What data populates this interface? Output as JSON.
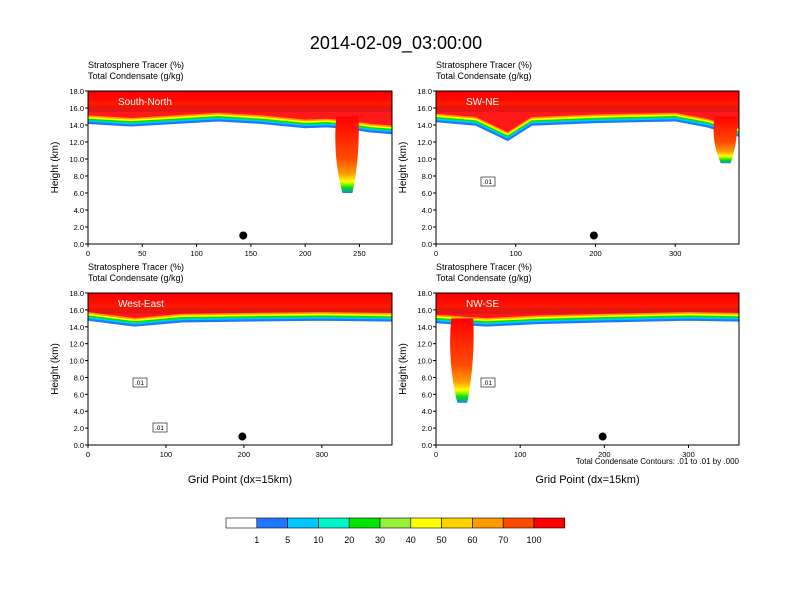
{
  "title": "2014-02-09_03:00:00",
  "footnote": "Total Condensate Contours: .01 to .01 by .000",
  "colorbar": {
    "colors": [
      "#ffffff",
      "#1e78ff",
      "#00c8ff",
      "#00f5c8",
      "#00e600",
      "#96f03c",
      "#ffff00",
      "#ffd200",
      "#ff9b00",
      "#ff4b00",
      "#ff0000"
    ],
    "labels": [
      "1",
      "5",
      "10",
      "20",
      "30",
      "40",
      "50",
      "60",
      "70",
      "100"
    ]
  },
  "chart_data": [
    {
      "type": "heatmap",
      "id": "south-north",
      "section_label": "South-North",
      "title_line1": "Stratosphere Tracer   (%)",
      "title_line2": "Total Condensate   (g/kg)",
      "ylabel": "Height (km)",
      "xlabel": "",
      "xlim": [
        0,
        280
      ],
      "ylim": [
        0,
        18
      ],
      "xticks": [
        "0",
        "50",
        "100",
        "150",
        "200",
        "250"
      ],
      "xtick_values": [
        0,
        50,
        100,
        150,
        200,
        250
      ],
      "yticks": [
        "0.0",
        "2.0",
        "4.0",
        "6.0",
        "8.0",
        "10.0",
        "12.0",
        "14.0",
        "16.0",
        "18.0"
      ],
      "tropopause_km": [
        [
          0,
          15.0
        ],
        [
          40,
          14.7
        ],
        [
          80,
          15.0
        ],
        [
          120,
          15.3
        ],
        [
          160,
          15.0
        ],
        [
          200,
          14.5
        ],
        [
          220,
          14.6
        ],
        [
          240,
          14.4
        ],
        [
          260,
          14.0
        ],
        [
          280,
          13.8
        ]
      ],
      "intrusion": {
        "x": 238,
        "bottom_km": 6.0
      },
      "marker": {
        "x": 143,
        "y": 1.0
      },
      "contour_labels": []
    },
    {
      "type": "heatmap",
      "id": "sw-ne",
      "section_label": "SW-NE",
      "title_line1": "Stratosphere Tracer   (%)",
      "title_line2": "Total Condensate   (g/kg)",
      "ylabel": "Height (km)",
      "xlabel": "",
      "xlim": [
        0,
        380
      ],
      "ylim": [
        0,
        18
      ],
      "xticks": [
        "0",
        "100",
        "200",
        "300"
      ],
      "xtick_values": [
        0,
        100,
        200,
        300
      ],
      "yticks": [
        "0.0",
        "2.0",
        "4.0",
        "6.0",
        "8.0",
        "10.0",
        "12.0",
        "14.0",
        "16.0",
        "18.0"
      ],
      "tropopause_km": [
        [
          0,
          15.2
        ],
        [
          50,
          14.8
        ],
        [
          90,
          13.0
        ],
        [
          120,
          14.8
        ],
        [
          200,
          15.1
        ],
        [
          300,
          15.3
        ],
        [
          340,
          14.6
        ],
        [
          380,
          13.5
        ]
      ],
      "intrusion": {
        "x": 362,
        "bottom_km": 9.5
      },
      "marker": {
        "x": 198,
        "y": 1.0
      },
      "contour_labels": [
        ".01"
      ]
    },
    {
      "type": "heatmap",
      "id": "west-east",
      "section_label": "West-East",
      "title_line1": "Stratosphere Tracer   (%)",
      "title_line2": "Total Condensate   (g/kg)",
      "ylabel": "Height (km)",
      "xlabel": "Grid Point (dx=15km)",
      "xlim": [
        0,
        390
      ],
      "ylim": [
        0,
        18
      ],
      "xticks": [
        "0",
        "100",
        "200",
        "300"
      ],
      "xtick_values": [
        0,
        100,
        200,
        300
      ],
      "yticks": [
        "0.0",
        "2.0",
        "4.0",
        "6.0",
        "8.0",
        "10.0",
        "12.0",
        "14.0",
        "16.0",
        "18.0"
      ],
      "tropopause_km": [
        [
          0,
          15.6
        ],
        [
          60,
          14.9
        ],
        [
          120,
          15.4
        ],
        [
          200,
          15.5
        ],
        [
          300,
          15.6
        ],
        [
          390,
          15.5
        ]
      ],
      "intrusion": null,
      "marker": {
        "x": 198,
        "y": 1.0
      },
      "contour_labels": [
        ".01",
        ".01"
      ]
    },
    {
      "type": "heatmap",
      "id": "nw-se",
      "section_label": "NW-SE",
      "title_line1": "Stratosphere Tracer   (%)",
      "title_line2": "Total Condensate   (g/kg)",
      "ylabel": "Height (km)",
      "xlabel": "Grid Point (dx=15km)",
      "xlim": [
        0,
        360
      ],
      "ylim": [
        0,
        18
      ],
      "xticks": [
        "0",
        "100",
        "200",
        "300"
      ],
      "xtick_values": [
        0,
        100,
        200,
        300
      ],
      "yticks": [
        "0.0",
        "2.0",
        "4.0",
        "6.0",
        "8.0",
        "10.0",
        "12.0",
        "14.0",
        "16.0",
        "18.0"
      ],
      "tropopause_km": [
        [
          0,
          15.3
        ],
        [
          60,
          14.9
        ],
        [
          120,
          15.2
        ],
        [
          200,
          15.4
        ],
        [
          300,
          15.6
        ],
        [
          360,
          15.5
        ]
      ],
      "intrusion": {
        "x": 30,
        "bottom_km": 5.0
      },
      "marker": {
        "x": 198,
        "y": 1.0
      },
      "contour_labels": [
        ".01"
      ]
    }
  ]
}
